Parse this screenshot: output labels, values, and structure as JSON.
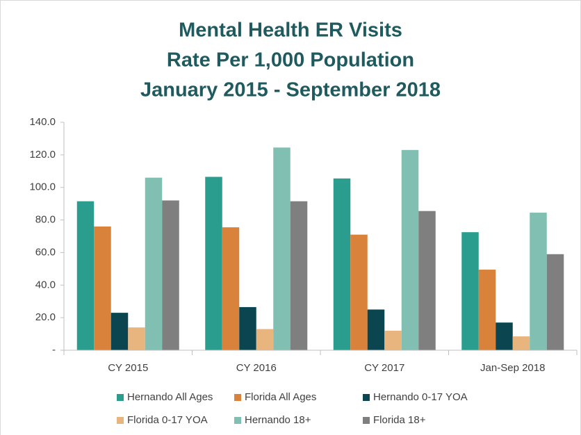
{
  "chart_data": {
    "type": "bar",
    "title": [
      "Mental Health ER Visits",
      "Rate Per 1,000 Population",
      "January 2015 - September 2018"
    ],
    "categories": [
      "CY 2015",
      "CY 2016",
      "CY 2017",
      "Jan-Sep 2018"
    ],
    "series": [
      {
        "name": "Hernando All Ages",
        "color": "#2a9d8f",
        "values": [
          91.5,
          106.5,
          105.5,
          72.5
        ]
      },
      {
        "name": "Florida All Ages",
        "color": "#d9823b",
        "values": [
          76,
          75.5,
          71,
          49.5
        ]
      },
      {
        "name": "Hernando 0-17 YOA",
        "color": "#0b4650",
        "values": [
          23,
          26.5,
          25,
          17
        ]
      },
      {
        "name": "Florida 0-17 YOA",
        "color": "#e8b57e",
        "values": [
          14,
          13,
          12,
          8.5
        ]
      },
      {
        "name": "Hernando 18+",
        "color": "#80bfb1",
        "values": [
          106,
          124.5,
          123,
          84.5
        ]
      },
      {
        "name": "Florida 18+",
        "color": "#7f7f7f",
        "values": [
          92,
          91.5,
          85.5,
          59
        ]
      }
    ],
    "ylim": [
      0,
      140
    ],
    "yticks": [
      {
        "value": 0,
        "label": "-"
      },
      {
        "value": 20,
        "label": "20.0"
      },
      {
        "value": 40,
        "label": "40.0"
      },
      {
        "value": 60,
        "label": "60.0"
      },
      {
        "value": 80,
        "label": "80.0"
      },
      {
        "value": 100,
        "label": "100.0"
      },
      {
        "value": 120,
        "label": "120.0"
      },
      {
        "value": 140,
        "label": "140.0"
      }
    ],
    "grid": false,
    "legend": "bottom"
  }
}
